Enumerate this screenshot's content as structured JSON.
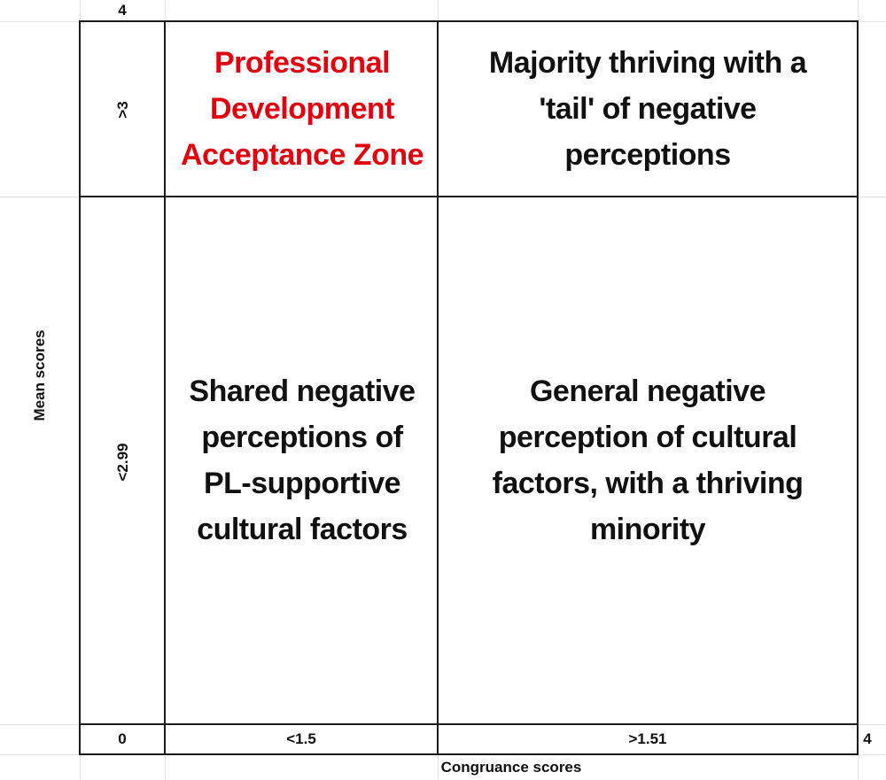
{
  "axes": {
    "y_label": "Mean scores",
    "x_label": "Congruance scores",
    "y_top": "4",
    "y_upper_band": ">3",
    "y_lower_band": "<2.99",
    "origin": "0",
    "x_left_band": "<1.5",
    "x_right_band": ">1.51",
    "x_end": "4"
  },
  "quadrants": {
    "top_left": "Professional Development Acceptance Zone",
    "top_right": "Majority thriving with a 'tail' of negative perceptions",
    "bottom_left": "Shared negative perceptions of PL-supportive cultural factors",
    "bottom_right": "General negative perception of cultural factors, with a thriving minority"
  },
  "colors": {
    "highlight": "#e3000f",
    "text": "#111111",
    "border": "#1a1a1a",
    "gridline": "#e3e3e3"
  }
}
